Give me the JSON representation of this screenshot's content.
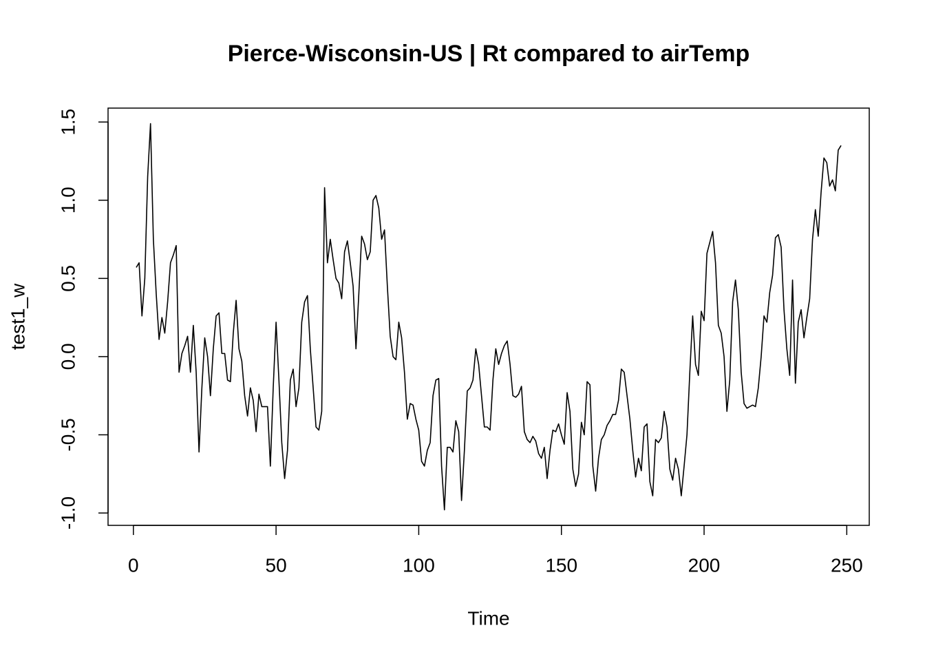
{
  "chart_data": {
    "type": "line",
    "title": "Pierce-Wisconsin-US | Rt compared to airTemp",
    "xlabel": "Time",
    "ylabel": "test1_w",
    "x": [
      1,
      2,
      3,
      4,
      5,
      6,
      7,
      8,
      9,
      10,
      11,
      12,
      13,
      14,
      15,
      16,
      17,
      18,
      19,
      20,
      21,
      22,
      23,
      24,
      25,
      26,
      27,
      28,
      29,
      30,
      31,
      32,
      33,
      34,
      35,
      36,
      37,
      38,
      39,
      40,
      41,
      42,
      43,
      44,
      45,
      46,
      47,
      48,
      49,
      50,
      51,
      52,
      53,
      54,
      55,
      56,
      57,
      58,
      59,
      60,
      61,
      62,
      63,
      64,
      65,
      66,
      67,
      68,
      69,
      70,
      71,
      72,
      73,
      74,
      75,
      76,
      77,
      78,
      79,
      80,
      81,
      82,
      83,
      84,
      85,
      86,
      87,
      88,
      89,
      90,
      91,
      92,
      93,
      94,
      95,
      96,
      97,
      98,
      99,
      100,
      101,
      102,
      103,
      104,
      105,
      106,
      107,
      108,
      109,
      110,
      111,
      112,
      113,
      114,
      115,
      116,
      117,
      118,
      119,
      120,
      121,
      122,
      123,
      124,
      125,
      126,
      127,
      128,
      129,
      130,
      131,
      132,
      133,
      134,
      135,
      136,
      137,
      138,
      139,
      140,
      141,
      142,
      143,
      144,
      145,
      146,
      147,
      148,
      149,
      150,
      151,
      152,
      153,
      154,
      155,
      156,
      157,
      158,
      159,
      160,
      161,
      162,
      163,
      164,
      165,
      166,
      167,
      168,
      169,
      170,
      171,
      172,
      173,
      174,
      175,
      176,
      177,
      178,
      179,
      180,
      181,
      182,
      183,
      184,
      185,
      186,
      187,
      188,
      189,
      190,
      191,
      192,
      193,
      194,
      195,
      196,
      197,
      198,
      199,
      200,
      201,
      202,
      203,
      204,
      205,
      206,
      207,
      208,
      209,
      210,
      211,
      212,
      213,
      214,
      215,
      216,
      217,
      218,
      219,
      220,
      221,
      222,
      223,
      224,
      225,
      226,
      227,
      228,
      229,
      230,
      231,
      232,
      233,
      234,
      235,
      236,
      237,
      238,
      239,
      240,
      241,
      242,
      243,
      244,
      245,
      246,
      247,
      248
    ],
    "series": [
      {
        "color": "#000000",
        "values": [
          0.57,
          0.6,
          0.26,
          0.5,
          1.15,
          1.49,
          0.75,
          0.4,
          0.11,
          0.25,
          0.15,
          0.35,
          0.6,
          0.65,
          0.71,
          -0.1,
          0.02,
          0.07,
          0.13,
          -0.1,
          0.2,
          -0.1,
          -0.61,
          -0.2,
          0.12,
          0.0,
          -0.25,
          0.05,
          0.26,
          0.28,
          0.02,
          0.02,
          -0.15,
          -0.16,
          0.15,
          0.36,
          0.05,
          -0.03,
          -0.25,
          -0.38,
          -0.2,
          -0.28,
          -0.48,
          -0.24,
          -0.32,
          -0.32,
          -0.32,
          -0.7,
          -0.2,
          0.22,
          -0.15,
          -0.55,
          -0.78,
          -0.6,
          -0.15,
          -0.08,
          -0.32,
          -0.2,
          0.22,
          0.35,
          0.39,
          0.05,
          -0.2,
          -0.45,
          -0.47,
          -0.35,
          1.08,
          0.6,
          0.75,
          0.62,
          0.5,
          0.47,
          0.37,
          0.67,
          0.74,
          0.6,
          0.45,
          0.05,
          0.4,
          0.77,
          0.72,
          0.62,
          0.67,
          1.0,
          1.03,
          0.95,
          0.75,
          0.81,
          0.45,
          0.13,
          0.0,
          -0.02,
          0.22,
          0.12,
          -0.1,
          -0.4,
          -0.3,
          -0.31,
          -0.4,
          -0.47,
          -0.67,
          -0.7,
          -0.6,
          -0.55,
          -0.25,
          -0.15,
          -0.14,
          -0.7,
          -0.98,
          -0.58,
          -0.58,
          -0.61,
          -0.41,
          -0.48,
          -0.92,
          -0.6,
          -0.22,
          -0.2,
          -0.15,
          0.05,
          -0.05,
          -0.25,
          -0.45,
          -0.45,
          -0.47,
          -0.15,
          0.05,
          -0.05,
          0.02,
          0.07,
          0.1,
          -0.05,
          -0.25,
          -0.26,
          -0.24,
          -0.19,
          -0.48,
          -0.53,
          -0.55,
          -0.51,
          -0.54,
          -0.62,
          -0.65,
          -0.58,
          -0.78,
          -0.6,
          -0.47,
          -0.48,
          -0.43,
          -0.5,
          -0.56,
          -0.23,
          -0.35,
          -0.72,
          -0.83,
          -0.75,
          -0.42,
          -0.5,
          -0.16,
          -0.18,
          -0.7,
          -0.86,
          -0.65,
          -0.53,
          -0.5,
          -0.44,
          -0.41,
          -0.37,
          -0.37,
          -0.28,
          -0.08,
          -0.1,
          -0.25,
          -0.4,
          -0.6,
          -0.77,
          -0.65,
          -0.73,
          -0.45,
          -0.43,
          -0.8,
          -0.89,
          -0.53,
          -0.55,
          -0.52,
          -0.35,
          -0.45,
          -0.72,
          -0.79,
          -0.65,
          -0.72,
          -0.89,
          -0.7,
          -0.5,
          -0.1,
          0.26,
          -0.05,
          -0.12,
          0.29,
          0.23,
          0.66,
          0.73,
          0.8,
          0.6,
          0.2,
          0.15,
          0.0,
          -0.35,
          -0.15,
          0.35,
          0.49,
          0.3,
          -0.1,
          -0.3,
          -0.33,
          -0.32,
          -0.31,
          -0.32,
          -0.2,
          0.0,
          0.26,
          0.22,
          0.41,
          0.52,
          0.76,
          0.78,
          0.7,
          0.3,
          0.05,
          -0.12,
          0.49,
          -0.17,
          0.22,
          0.3,
          0.12,
          0.25,
          0.37,
          0.75,
          0.94,
          0.77,
          1.05,
          1.27,
          1.24,
          1.09,
          1.13,
          1.06,
          1.32,
          1.35
        ]
      }
    ],
    "xlim": [
      -8.88,
      257.88
    ],
    "xticks": [
      0,
      50,
      100,
      150,
      200,
      250
    ],
    "ylim": [
      -1.079,
      1.589
    ],
    "yticks": [
      {
        "value": -1,
        "label": "-1.0"
      },
      -0.5,
      {
        "value": 0,
        "label": "0.0"
      },
      0.5,
      {
        "value": 1,
        "label": "1.0"
      },
      1.5
    ]
  }
}
